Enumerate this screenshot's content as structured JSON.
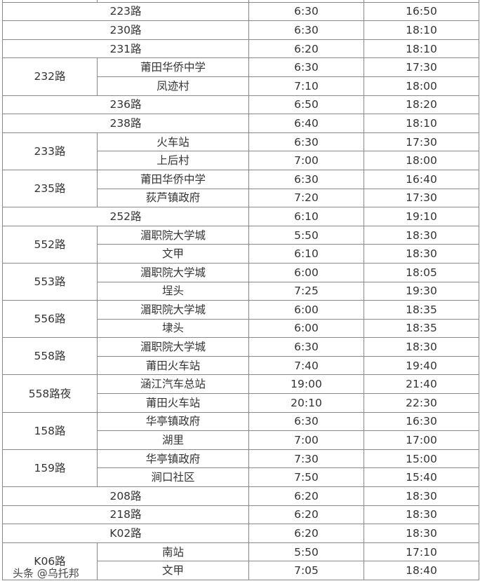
{
  "routes": [
    {
      "name": "223路",
      "first": "6:30",
      "last": "16:50"
    },
    {
      "name": "230路",
      "first": "6:30",
      "last": "18:10"
    },
    {
      "name": "231路",
      "first": "6:20",
      "last": "18:10"
    },
    {
      "name": "232路",
      "branches": [
        {
          "stop": "莆田华侨中学",
          "first": "6:30",
          "last": "17:30"
        },
        {
          "stop": "凤迹村",
          "first": "7:10",
          "last": "18:00"
        }
      ]
    },
    {
      "name": "236路",
      "first": "6:50",
      "last": "18:20"
    },
    {
      "name": "238路",
      "first": "6:40",
      "last": "18:10"
    },
    {
      "name": "233路",
      "branches": [
        {
          "stop": "火车站",
          "first": "6:30",
          "last": "17:30"
        },
        {
          "stop": "上后村",
          "first": "7:00",
          "last": "18:00"
        }
      ]
    },
    {
      "name": "235路",
      "branches": [
        {
          "stop": "莆田华侨中学",
          "first": "6:30",
          "last": "16:40"
        },
        {
          "stop": "荻芦镇政府",
          "first": "7:20",
          "last": "17:30"
        }
      ]
    },
    {
      "name": "252路",
      "first": "6:10",
      "last": "19:10"
    },
    {
      "name": "552路",
      "branches": [
        {
          "stop": "湄职院大学城",
          "first": "5:50",
          "last": "18:30"
        },
        {
          "stop": "文甲",
          "first": "6:10",
          "last": "18:30"
        }
      ]
    },
    {
      "name": "553路",
      "branches": [
        {
          "stop": "湄职院大学城",
          "first": "6:00",
          "last": "18:05"
        },
        {
          "stop": "埕头",
          "first": "7:25",
          "last": "19:30"
        }
      ]
    },
    {
      "name": "556路",
      "branches": [
        {
          "stop": "湄职院大学城",
          "first": "6:00",
          "last": "18:35"
        },
        {
          "stop": "埭头",
          "first": "6:00",
          "last": "18:35"
        }
      ]
    },
    {
      "name": "558路",
      "branches": [
        {
          "stop": "湄职院大学城",
          "first": "6:30",
          "last": "18:30"
        },
        {
          "stop": "莆田火车站",
          "first": "7:40",
          "last": "19:40"
        }
      ]
    },
    {
      "name": "558路夜",
      "branches": [
        {
          "stop": "涵江汽车总站",
          "first": "19:00",
          "last": "21:40"
        },
        {
          "stop": "莆田火车站",
          "first": "20:10",
          "last": "22:30"
        }
      ]
    },
    {
      "name": "158路",
      "branches": [
        {
          "stop": "华亭镇政府",
          "first": "6:30",
          "last": "16:30"
        },
        {
          "stop": "湖里",
          "first": "7:00",
          "last": "17:00"
        }
      ]
    },
    {
      "name": "159路",
      "branches": [
        {
          "stop": "华亭镇政府",
          "first": "7:30",
          "last": "15:00"
        },
        {
          "stop": "涧口社区",
          "first": "7:50",
          "last": "15:40"
        }
      ]
    },
    {
      "name": "208路",
      "first": "6:20",
      "last": "18:30"
    },
    {
      "name": "218路",
      "first": "6:20",
      "last": "18:30"
    },
    {
      "name": "K02路",
      "first": "6:20",
      "last": "18:30"
    },
    {
      "name": "K06路",
      "branches": [
        {
          "stop": "南站",
          "first": "5:50",
          "last": "17:10"
        },
        {
          "stop": "文甲",
          "first": "7:05",
          "last": "18:40"
        }
      ]
    }
  ],
  "watermark": "头条 @乌托邦"
}
